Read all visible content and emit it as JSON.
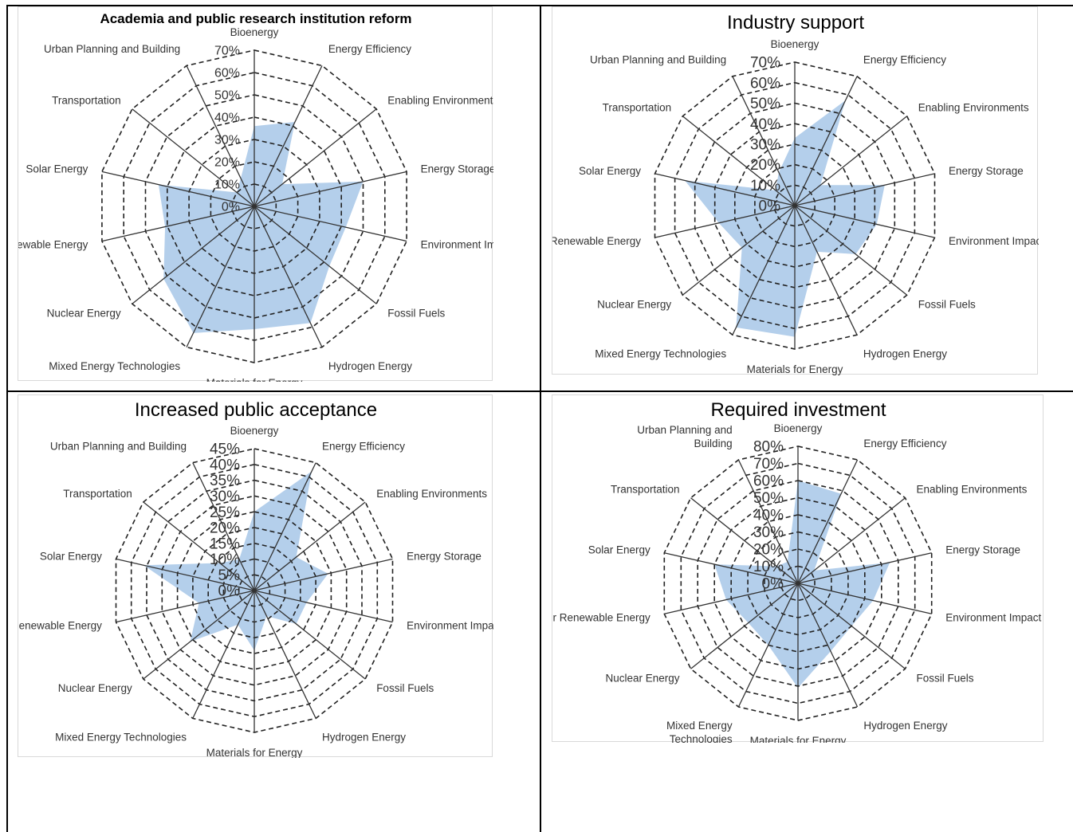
{
  "chart_data": [
    {
      "type": "radar",
      "title": "Academia and public research institution reform",
      "categories": [
        "Bioenergy",
        "Energy Efficiency",
        "Enabling Environments",
        "Energy Storage",
        "Environment Impact",
        "Fossil Fuels",
        "Hydrogen Energy",
        "Materials for Energy",
        "Mixed Energy Technologies",
        "Nuclear Energy",
        "Renewable Energy",
        "Solar Energy",
        "Transportation",
        "Urban Planning and Building"
      ],
      "ticks": [
        "0%",
        "10%",
        "20%",
        "30%",
        "40%",
        "50%",
        "60%",
        "70%"
      ],
      "rmax": 70,
      "values": [
        36,
        42,
        16,
        50,
        42,
        43,
        58,
        55,
        63,
        52,
        41,
        44,
        10,
        14
      ],
      "color": "#b4cfeb",
      "grid": "dashed"
    },
    {
      "type": "radar",
      "title": "Industry support",
      "categories": [
        "Bioenergy",
        "Energy Efficiency",
        "Enabling Environments",
        "Energy Storage",
        "Environment Impact",
        "Fossil Fuels",
        "Hydrogen Energy",
        "Materials for Energy",
        "Mixed Energy Technologies",
        "Nuclear Energy",
        "Renewable Energy",
        "Solar Energy",
        "Transportation",
        "Urban Planning and Building"
      ],
      "ticks": [
        "0%",
        "10%",
        "20%",
        "30%",
        "40%",
        "50%",
        "60%",
        "70%"
      ],
      "rmax": 70,
      "values": [
        33,
        57,
        16,
        45,
        41,
        38,
        25,
        64,
        66,
        33,
        38,
        55,
        12,
        18
      ],
      "color": "#b4cfeb",
      "grid": "dashed"
    },
    {
      "type": "radar",
      "title": "Increased public acceptance",
      "categories": [
        "Bioenergy",
        "Energy Efficiency",
        "Enabling Environments",
        "Energy Storage",
        "Environment Impact",
        "Fossil Fuels",
        "Hydrogen Energy",
        "Materials for Energy",
        "Mixed Energy Technologies",
        "Nuclear Energy",
        "Renewable Energy",
        "Solar Energy",
        "Transportation",
        "Urban Planning and Building"
      ],
      "ticks": [
        "0%",
        "5%",
        "10%",
        "15%",
        "20%",
        "25%",
        "30%",
        "35%",
        "40%",
        "45%"
      ],
      "rmax": 45,
      "values": [
        25,
        42,
        17,
        24,
        17,
        17,
        9,
        19,
        12,
        26,
        18,
        36,
        14,
        11
      ],
      "color": "#b4cfeb",
      "grid": "dashed"
    },
    {
      "type": "radar",
      "title": "Required investment",
      "categories": [
        "Bioenergy",
        "Energy Efficiency",
        "Enabling Environments",
        "Energy Storage",
        "Environment Impact",
        "Fossil Fuels",
        "Hydrogen Energy",
        "Materials for Energy",
        "Mixed Energy Technologies",
        "Nuclear Energy",
        "Renewable Energy",
        "Solar Energy",
        "Transportation",
        "Urban Planning and Building"
      ],
      "display_categories": [
        "Bioenergy",
        "Energy Efficiency",
        "Enabling Environments",
        "Energy Storage",
        "Environment Impact",
        "Fossil Fuels",
        "Hydrogen Energy",
        "Materials for Energy",
        "Mixed Energy\nTechnologies",
        "Nuclear Energy",
        "r Renewable Energy",
        "Solar Energy",
        "Transportation",
        "Urban Planning and\nBuilding"
      ],
      "ticks": [
        "0%",
        "10%",
        "20%",
        "30%",
        "40%",
        "50%",
        "60%",
        "70%",
        "80%"
      ],
      "rmax": 80,
      "values": [
        60,
        58,
        12,
        55,
        45,
        40,
        44,
        61,
        40,
        37,
        43,
        50,
        16,
        14
      ],
      "color": "#b4cfeb",
      "grid": "dashed"
    }
  ]
}
